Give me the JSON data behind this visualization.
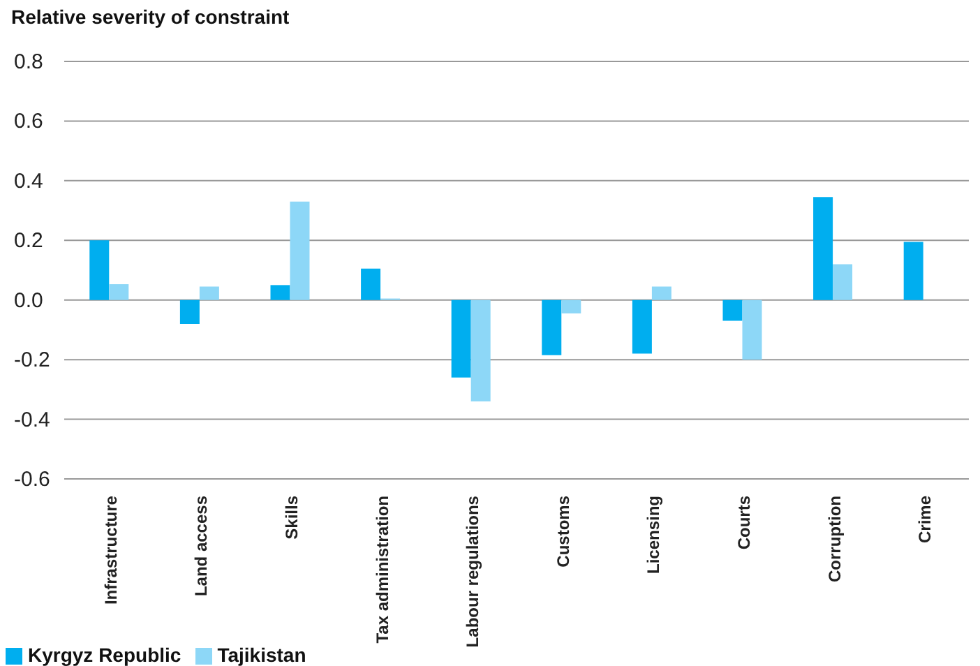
{
  "chart_data": {
    "type": "bar",
    "title": "Relative severity of constraint",
    "categories": [
      "Infrastructure",
      "Land access",
      "Skills",
      "Tax administration",
      "Labour regulations",
      "Customs",
      "Licensing",
      "Courts",
      "Corruption",
      "Crime"
    ],
    "series": [
      {
        "name": "Kyrgyz Republic",
        "color": "#00aeef",
        "values": [
          0.2,
          -0.08,
          0.05,
          0.105,
          -0.26,
          -0.185,
          -0.18,
          -0.07,
          0.345,
          0.195
        ]
      },
      {
        "name": "Tajikistan",
        "color": "#8dd7f7",
        "values": [
          0.053,
          0.045,
          0.33,
          0.005,
          -0.34,
          -0.045,
          0.045,
          -0.2,
          0.12,
          null
        ]
      }
    ],
    "ylim": [
      -0.6,
      0.8
    ],
    "yticks": [
      {
        "value": -0.6,
        "label": "-0.6"
      },
      {
        "value": -0.4,
        "label": "-0.4"
      },
      {
        "value": -0.2,
        "label": "-0.2"
      },
      {
        "value": 0,
        "label": "0.0"
      },
      {
        "value": 0.2,
        "label": "0.2"
      },
      {
        "value": 0.4,
        "label": "0.4"
      },
      {
        "value": 0.6,
        "label": "0.6"
      },
      {
        "value": 0.8,
        "label": "0.8"
      }
    ],
    "grid": "y",
    "legend": "bottom left"
  }
}
